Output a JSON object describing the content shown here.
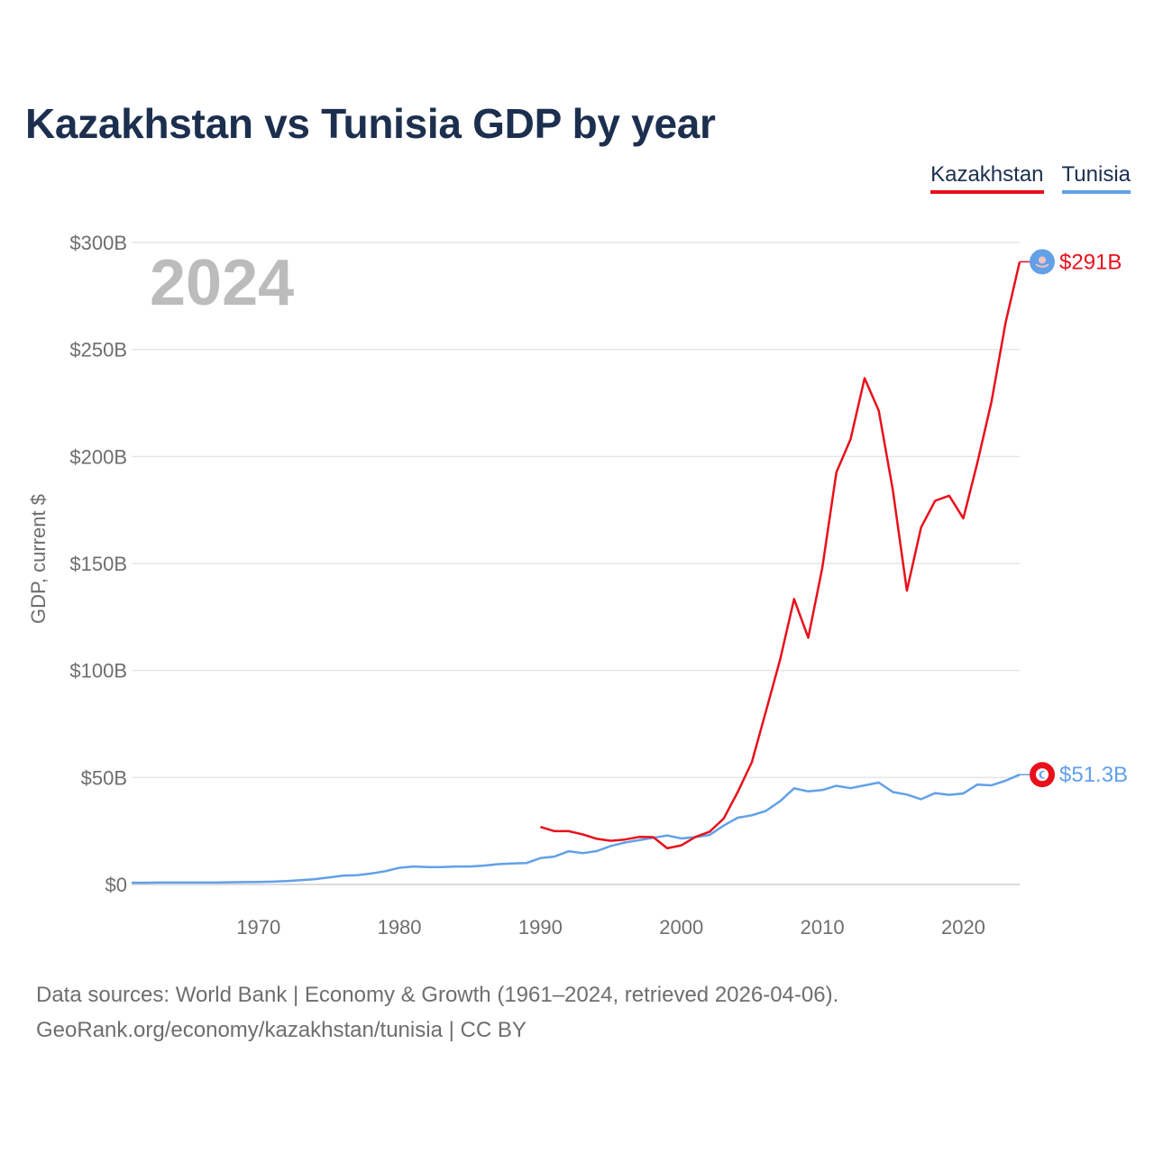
{
  "header": {
    "title": "Kazakhstan vs Tunisia GDP by year"
  },
  "legend": {
    "kazakhstan": "Kazakhstan",
    "tunisia": "Tunisia"
  },
  "footer": {
    "line1": "Data sources: World Bank | Economy & Growth (1961–2024, retrieved 2026-04-06).",
    "line2": "GeoRank.org/economy/kazakhstan/tunisia | CC BY"
  },
  "chart_data": {
    "type": "line",
    "title": "Kazakhstan vs Tunisia GDP by year",
    "year_label": "2024",
    "ylabel": "GDP, current $",
    "xlabel": "",
    "xlim": [
      1961,
      2024
    ],
    "ylim": [
      0,
      300
    ],
    "y_unit": "billion USD",
    "yticks": [
      0,
      50,
      100,
      150,
      200,
      250,
      300
    ],
    "ytick_labels": [
      "$0",
      "$50B",
      "$100B",
      "$150B",
      "$200B",
      "$250B",
      "$300B"
    ],
    "xticks": [
      1970,
      1980,
      1990,
      2000,
      2010,
      2020
    ],
    "xtick_labels": [
      "1970",
      "1980",
      "1990",
      "2000",
      "2010",
      "2020"
    ],
    "grid": true,
    "legend_position": "top-right",
    "colors": {
      "kazakhstan": "#e8101b",
      "tunisia": "#62a0e8"
    },
    "series": [
      {
        "name": "Kazakhstan",
        "end_label": "$291B",
        "x": [
          1990,
          1991,
          1992,
          1993,
          1994,
          1995,
          1996,
          1997,
          1998,
          1999,
          2000,
          2001,
          2002,
          2003,
          2004,
          2005,
          2006,
          2007,
          2008,
          2009,
          2010,
          2011,
          2012,
          2013,
          2014,
          2015,
          2016,
          2017,
          2018,
          2019,
          2020,
          2021,
          2022,
          2023,
          2024
        ],
        "values": [
          26.9,
          24.9,
          24.9,
          23.4,
          21.3,
          20.4,
          21.0,
          22.2,
          22.1,
          16.9,
          18.3,
          22.2,
          24.6,
          30.8,
          43.2,
          57.1,
          81.0,
          104.9,
          133.4,
          115.3,
          148.0,
          192.6,
          208.0,
          236.6,
          221.4,
          184.4,
          137.3,
          166.8,
          179.3,
          181.7,
          171.1,
          197.1,
          225.5,
          262.6,
          291.0
        ]
      },
      {
        "name": "Tunisia",
        "end_label": "$51.3B",
        "x": [
          1961,
          1962,
          1963,
          1964,
          1965,
          1966,
          1967,
          1968,
          1969,
          1970,
          1971,
          1972,
          1973,
          1974,
          1975,
          1976,
          1977,
          1978,
          1979,
          1980,
          1981,
          1982,
          1983,
          1984,
          1985,
          1986,
          1987,
          1988,
          1989,
          1990,
          1991,
          1992,
          1993,
          1994,
          1995,
          1996,
          1997,
          1998,
          1999,
          2000,
          2001,
          2002,
          2003,
          2004,
          2005,
          2006,
          2007,
          2008,
          2009,
          2010,
          2011,
          2012,
          2013,
          2014,
          2015,
          2016,
          2017,
          2018,
          2019,
          2020,
          2021,
          2022,
          2023,
          2024
        ],
        "values": [
          0.8,
          0.8,
          0.9,
          0.9,
          0.9,
          0.9,
          0.9,
          1.0,
          1.1,
          1.2,
          1.3,
          1.6,
          2.0,
          2.5,
          3.3,
          4.1,
          4.3,
          5.1,
          6.2,
          7.8,
          8.4,
          8.1,
          8.1,
          8.4,
          8.4,
          8.8,
          9.5,
          9.8,
          10.0,
          12.3,
          13.0,
          15.5,
          14.6,
          15.6,
          18.0,
          19.6,
          20.7,
          21.8,
          22.9,
          21.5,
          22.1,
          23.1,
          27.5,
          31.2,
          32.3,
          34.4,
          38.9,
          44.9,
          43.5,
          44.1,
          46.1,
          45.0,
          46.3,
          47.6,
          43.2,
          42.0,
          39.8,
          42.7,
          41.9,
          42.5,
          46.7,
          46.3,
          48.5,
          51.3
        ]
      }
    ]
  }
}
